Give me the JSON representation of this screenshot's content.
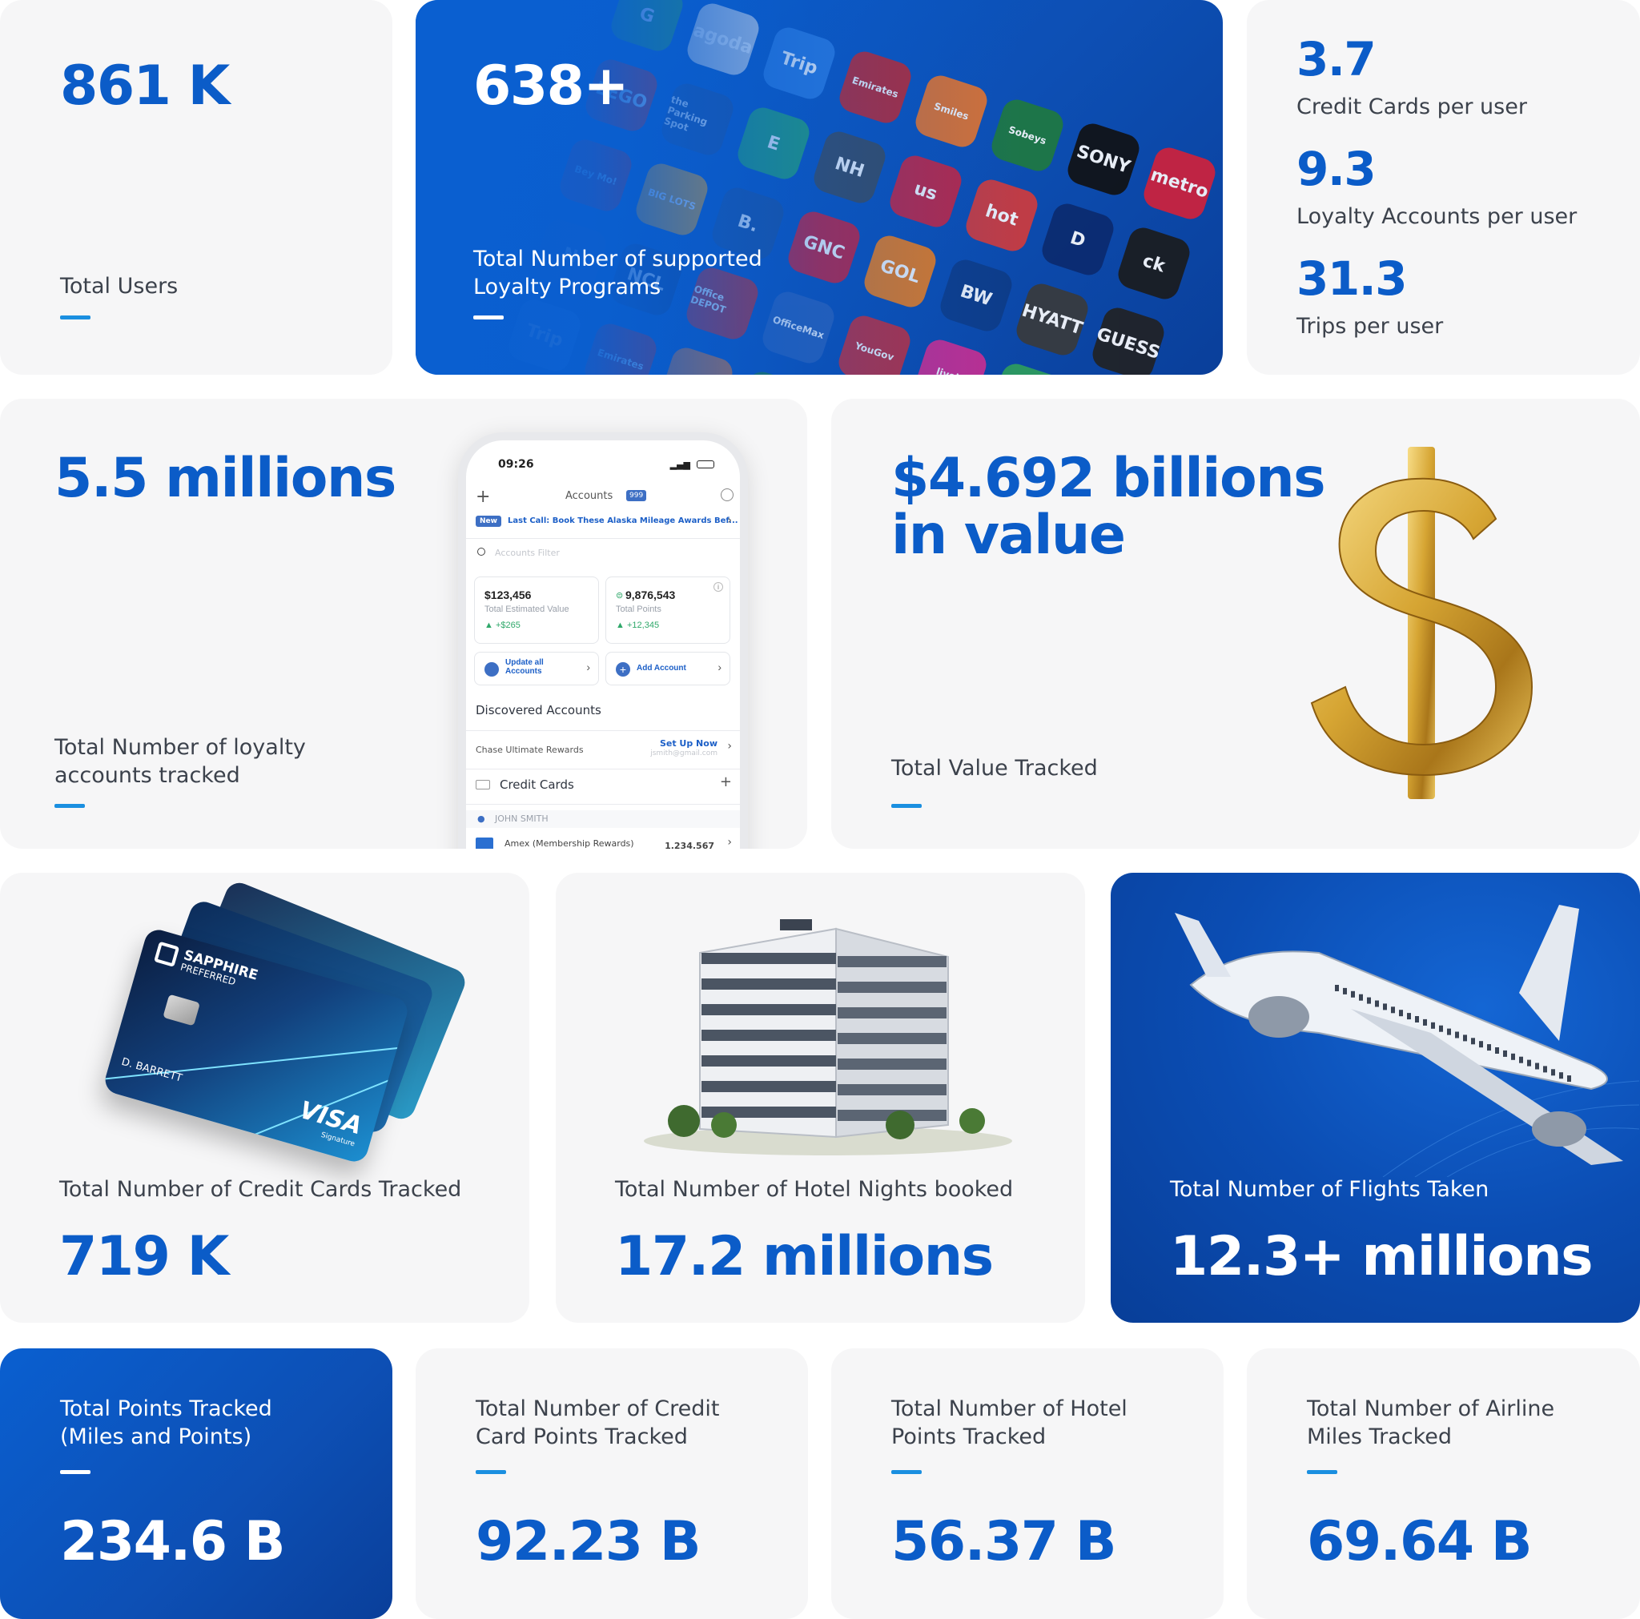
{
  "cards": {
    "users": {
      "value": "861 K",
      "label": "Total Users"
    },
    "programs": {
      "value": "638+",
      "label_line1": "Total Number of supported",
      "label_line2": "Loyalty Programs"
    },
    "per_user": [
      {
        "value": "3.7",
        "label": "Credit Cards per user"
      },
      {
        "value": "9.3",
        "label": "Loyalty Accounts per user"
      },
      {
        "value": "31.3",
        "label": "Trips per user"
      }
    ],
    "accounts": {
      "value": "5.5 millions",
      "label_line1": "Total Number of loyalty",
      "label_line2": "accounts tracked"
    },
    "value_tracked": {
      "value_line1": "$4.692 billions",
      "value_line2": "in value",
      "label": "Total Value Tracked"
    },
    "credit_cards": {
      "label": "Total Number of Credit Cards Tracked",
      "value": "719 K"
    },
    "hotel_nights": {
      "label": "Total Number of Hotel Nights booked",
      "value": "17.2 millions"
    },
    "flights": {
      "label": "Total Number of Flights Taken",
      "value": "12.3+ millions"
    },
    "points_total": {
      "label_line1": "Total Points Tracked",
      "label_line2": "(Miles and Points)",
      "value": "234.6 B"
    },
    "cc_points": {
      "label_line1": "Total Number of Credit",
      "label_line2": "Card Points Tracked",
      "value": "92.23 B"
    },
    "hotel_points": {
      "label_line1": "Total Number of Hotel",
      "label_line2": "Points Tracked",
      "value": "56.37 B"
    },
    "airline_miles": {
      "label_line1": "Total Number of Airline",
      "label_line2": "Miles Tracked",
      "value": "69.64 B"
    }
  },
  "logos": [
    {
      "text": "G",
      "color": "#2f9e5b"
    },
    {
      "text": "agoda",
      "color": "#cfd6e4"
    },
    {
      "text": "Trip",
      "color": "#2d7be0"
    },
    {
      "text": "Emirates",
      "color": "#c0262d"
    },
    {
      "text": "Smiles",
      "color": "#e8742a"
    },
    {
      "text": "Sobeys",
      "color": "#1f7a3e"
    },
    {
      "text": "SONY",
      "color": "#111111"
    },
    {
      "text": "metro",
      "color": "#d3213a"
    },
    {
      "text": "LEGO",
      "color": "#d8261e"
    },
    {
      "text": "the Parking Spot",
      "color": "#1e4f9c"
    },
    {
      "text": "E",
      "color": "#25a073"
    },
    {
      "text": "NH",
      "color": "#3b4a5c"
    },
    {
      "text": "us",
      "color": "#c52440"
    },
    {
      "text": "hot",
      "color": "#d33b3b"
    },
    {
      "text": "D",
      "color": "#0b2a6e"
    },
    {
      "text": "ck",
      "color": "#1b1b1b"
    },
    {
      "text": "Bey Mo!",
      "color": "#c4232b"
    },
    {
      "text": "BIG LOTS",
      "color": "#f3a21b"
    },
    {
      "text": "B.",
      "color": "#1c4f9c"
    },
    {
      "text": "GNC",
      "color": "#c8203a"
    },
    {
      "text": "GOL",
      "color": "#ef7d1a"
    },
    {
      "text": "BW",
      "color": "#0e3b86"
    },
    {
      "text": "HYATT",
      "color": "#3a3a3a"
    },
    {
      "text": "GUESS",
      "color": "#222222"
    },
    {
      "text": "N",
      "color": "#2257b3"
    },
    {
      "text": "NCL",
      "color": "#13428f"
    },
    {
      "text": "Office DEPOT",
      "color": "#c5282d"
    },
    {
      "text": "OfficeMax",
      "color": "#2c5fb6"
    },
    {
      "text": "YouGov",
      "color": "#c42c39"
    },
    {
      "text": "livelo",
      "color": "#d22c8f"
    }
  ],
  "phone": {
    "time": "09:26",
    "title": "Accounts",
    "badge": "999",
    "news_tag": "New",
    "news_text": "Last Call: Book These Alaska Mileage Awards Bef...",
    "filter_placeholder": "Accounts Filter",
    "est_value": "$123,456",
    "est_value_label": "Total Estimated Value",
    "est_value_delta": "+$265",
    "points": "9,876,543",
    "points_label": "Total Points",
    "points_delta": "+12,345",
    "update_btn_line1": "Update all",
    "update_btn_line2": "Accounts",
    "add_btn": "Add Account",
    "discovered": "Discovered Accounts",
    "chase": "Chase Ultimate Rewards",
    "setup": "Set Up Now",
    "email": "jsmith@gmail.com",
    "credit_cards": "Credit Cards",
    "holder": "JOHN SMITH",
    "amex": "Amex (Membership Rewards)",
    "amex_points": "1,234,567"
  },
  "credit_card_image": {
    "brand_line1": "SAPPHIRE",
    "brand_line2": "PREFERRED",
    "name": "D. BARRETT",
    "network": "VISA",
    "network_sub": "Signature"
  }
}
